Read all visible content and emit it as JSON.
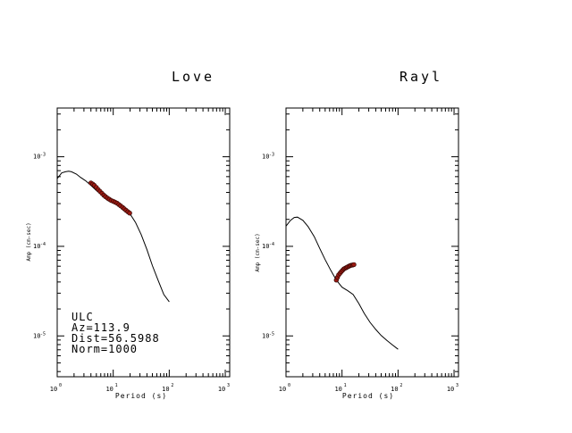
{
  "chart_data": [
    {
      "type": "line",
      "title": "Love",
      "xlabel": "Period (s)",
      "ylabel": "Amp (cm-sec)",
      "xscale": "log",
      "yscale": "log",
      "xlim": [
        1,
        1200
      ],
      "ylim": [
        3.5e-06,
        0.0035
      ],
      "x_ticks": [
        {
          "base": "10",
          "exp": "0"
        },
        {
          "base": "10",
          "exp": "1"
        },
        {
          "base": "10",
          "exp": "2"
        },
        {
          "base": "10",
          "exp": "3"
        }
      ],
      "y_ticks": [
        {
          "base": "10",
          "exp": "-3"
        },
        {
          "base": "10",
          "exp": "-4"
        },
        {
          "base": "10",
          "exp": "-5"
        }
      ],
      "series": [
        {
          "role": "curve",
          "color": "#000000",
          "x": [
            1.0,
            1.2,
            1.4,
            1.6,
            1.8,
            2.2,
            2.6,
            3.2,
            4.0,
            5.0,
            6.3,
            7.9,
            10,
            12.6,
            15.8,
            20,
            25,
            31.6,
            40,
            50,
            63,
            80,
            100
          ],
          "y": [
            0.00057,
            0.00066,
            0.00068,
            0.00069,
            0.00068,
            0.00064,
            0.00059,
            0.00054,
            0.00048,
            0.00042,
            0.000375,
            0.000335,
            0.00031,
            0.000285,
            0.00026,
            0.00023,
            0.000185,
            0.000135,
            9.2e-05,
            6.1e-05,
            4.2e-05,
            2.9e-05,
            2.4e-05
          ]
        },
        {
          "role": "observed",
          "color": "#9a1a12",
          "x": [
            4.0,
            4.3,
            4.6,
            5.0,
            5.4,
            5.8,
            6.3,
            6.8,
            7.3,
            7.9,
            8.5,
            9.2,
            10.0,
            10.8,
            11.7,
            12.6,
            13.6,
            14.7,
            15.8,
            17.0,
            18.3,
            19.7
          ],
          "y": [
            0.00051,
            0.000495,
            0.00048,
            0.000455,
            0.00043,
            0.00041,
            0.00039,
            0.000372,
            0.000358,
            0.000345,
            0.000335,
            0.000325,
            0.000318,
            0.000311,
            0.000303,
            0.000293,
            0.000283,
            0.000272,
            0.000262,
            0.000252,
            0.000243,
            0.000235
          ]
        }
      ],
      "annotation": [
        "ULC",
        "Az=113.9",
        "Dist=56.5988",
        "Norm=1000"
      ]
    },
    {
      "type": "line",
      "title": "Rayl",
      "xlabel": "Period (s)",
      "ylabel": "Amp (cm-sec)",
      "xscale": "log",
      "yscale": "log",
      "xlim": [
        1,
        1200
      ],
      "ylim": [
        3.5e-06,
        0.0035
      ],
      "x_ticks": [
        {
          "base": "10",
          "exp": "0"
        },
        {
          "base": "10",
          "exp": "1"
        },
        {
          "base": "10",
          "exp": "2"
        },
        {
          "base": "10",
          "exp": "3"
        }
      ],
      "y_ticks": [
        {
          "base": "10",
          "exp": "-3"
        },
        {
          "base": "10",
          "exp": "-4"
        },
        {
          "base": "10",
          "exp": "-5"
        }
      ],
      "series": [
        {
          "role": "curve",
          "color": "#000000",
          "x": [
            1.0,
            1.2,
            1.4,
            1.6,
            2.0,
            2.5,
            3.2,
            4.0,
            5.0,
            6.3,
            7.9,
            10,
            12.6,
            15.8,
            20,
            25,
            31.6,
            40,
            50,
            63,
            80,
            100
          ],
          "y": [
            0.000168,
            0.000195,
            0.00021,
            0.000212,
            0.000195,
            0.000165,
            0.000128,
            9.5e-05,
            7.1e-05,
            5.4e-05,
            4.2e-05,
            3.5e-05,
            3.2e-05,
            2.9e-05,
            2.3e-05,
            1.78e-05,
            1.42e-05,
            1.18e-05,
            1.01e-05,
            8.9e-06,
            7.9e-06,
            7.1e-06
          ]
        },
        {
          "role": "observed",
          "color": "#9a1a12",
          "x": [
            7.9,
            8.3,
            8.7,
            9.2,
            9.7,
            10.2,
            10.8,
            11.4,
            12.0,
            12.6,
            13.3,
            14.0,
            14.7,
            15.5,
            16.3
          ],
          "y": [
            4.2e-05,
            4.5e-05,
            4.8e-05,
            5e-05,
            5.2e-05,
            5.4e-05,
            5.6e-05,
            5.7e-05,
            5.8e-05,
            5.9e-05,
            6e-05,
            6.1e-05,
            6.15e-05,
            6.2e-05,
            6.25e-05
          ]
        }
      ]
    }
  ]
}
